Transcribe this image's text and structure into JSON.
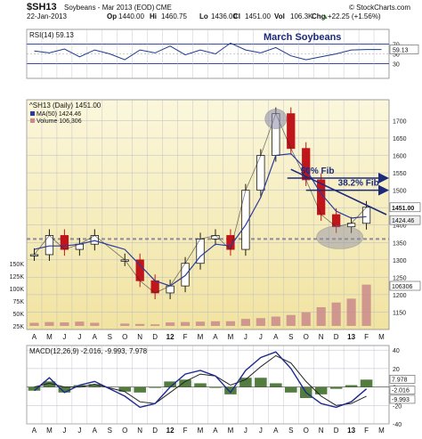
{
  "header": {
    "symbol": "$SH13",
    "name": "Soybeans - Mar 2013 (EOD)",
    "exchange": "CME",
    "copyright": "© StockCharts.com",
    "date": "22-Jan-2013",
    "quote": [
      {
        "label": "Op",
        "value": "1440.00"
      },
      {
        "label": "Hi",
        "value": "1460.75"
      },
      {
        "label": "Lo",
        "value": "1436.00"
      },
      {
        "label": "Cl",
        "value": "1451.00"
      },
      {
        "label": "Vol",
        "value": "106.3K"
      },
      {
        "label": "Chg",
        "value": "+22.25 (+1.56%)"
      }
    ],
    "up_arrow": "▲"
  },
  "colors": {
    "price_panel_bg": "#f9f3c9",
    "price_panel_bg_bottom": "#f2e6a4",
    "grid": "#b9b9c7",
    "rsi_line": "#1c3a8c",
    "ma_line": "#2b3c9c",
    "candle_up": "#1a1a1a",
    "candle_down": "#c0151a",
    "volume": "#c98a8a",
    "macd_line": "#1c2a8c",
    "signal_line": "#222222",
    "histogram": "#3f6f2a",
    "annotation": "#1c2a7c",
    "highlight": "#8a8aa8"
  },
  "chart_data": [
    {
      "type": "line",
      "panel": "RSI",
      "title": "RSI(14) 59.13",
      "annotation": "March Soybeans",
      "ylim": [
        0,
        100
      ],
      "y_ticks": [
        30,
        50,
        70
      ],
      "last_value": "59.13",
      "x": [
        "A",
        "M",
        "J",
        "J",
        "A",
        "S",
        "O",
        "N",
        "D",
        "12",
        "F",
        "M",
        "A",
        "M",
        "J",
        "J",
        "A",
        "S",
        "O",
        "N",
        "D",
        "13",
        "F",
        "M"
      ],
      "values": [
        56,
        52,
        60,
        44,
        58,
        50,
        38,
        58,
        52,
        66,
        48,
        58,
        50,
        72,
        58,
        52,
        63,
        46,
        38,
        44,
        50,
        58,
        59,
        59
      ]
    },
    {
      "type": "candlestick",
      "panel": "Price",
      "title": "^SH13 (Daily) 1451.00",
      "legend": [
        {
          "label": "MA(50) 1424.46"
        },
        {
          "label": "Volume 106,306"
        }
      ],
      "ylim": [
        1100,
        1760
      ],
      "y_ticks": [
        1150,
        1200,
        1250,
        1300,
        1350,
        1400,
        1450,
        1500,
        1550,
        1600,
        1650,
        1700
      ],
      "volume_ticks": [
        "150K",
        "125K",
        "100K",
        "75K",
        "50K",
        "25K"
      ],
      "volume_last": "106306",
      "price_labels": [
        "1451.00",
        "1424.46"
      ],
      "annotations": [
        {
          "text": "50% Fib",
          "level": 1535
        },
        {
          "text": "38.2% Fib",
          "level": 1500
        }
      ],
      "support_level": 1360,
      "x": [
        "A",
        "M",
        "J",
        "J",
        "A",
        "S",
        "O",
        "N",
        "D",
        "12",
        "F",
        "M",
        "A",
        "M",
        "J",
        "J",
        "A",
        "S",
        "O",
        "N",
        "D",
        "13",
        "F",
        "M"
      ],
      "close": [
        1315,
        1370,
        1330,
        1345,
        1370,
        null,
        1300,
        1240,
        1205,
        1225,
        1290,
        1360,
        1370,
        1330,
        1500,
        1600,
        1720,
        1620,
        1530,
        1430,
        1395,
        1405,
        1451,
        null
      ],
      "ma50": [
        1330,
        1340,
        1340,
        1345,
        1355,
        null,
        1330,
        1285,
        1240,
        1225,
        1255,
        1310,
        1345,
        1340,
        1400,
        1480,
        1600,
        1605,
        1560,
        1490,
        1440,
        1420,
        1424,
        null
      ],
      "volume": [
        8,
        10,
        9,
        11,
        8,
        null,
        6,
        5,
        4,
        9,
        10,
        11,
        12,
        12,
        18,
        20,
        24,
        28,
        35,
        48,
        60,
        70,
        106,
        null
      ]
    },
    {
      "type": "line",
      "panel": "MACD",
      "title": "MACD(12,26,9) -2.016, -9.993, 7.978",
      "ylim": [
        -40,
        45
      ],
      "y_ticks": [
        -40,
        -20,
        0,
        20,
        40
      ],
      "labels": [
        "7.978",
        "-2.016",
        "-9.993"
      ],
      "x": [
        "A",
        "M",
        "J",
        "J",
        "A",
        "S",
        "O",
        "N",
        "D",
        "12",
        "F",
        "M",
        "A",
        "M",
        "J",
        "J",
        "A",
        "S",
        "O",
        "N",
        "D",
        "13",
        "F",
        "M"
      ],
      "macd": [
        -4,
        10,
        -6,
        2,
        6,
        null,
        -10,
        -22,
        -18,
        0,
        14,
        18,
        12,
        -6,
        18,
        32,
        38,
        20,
        -6,
        -18,
        -22,
        -16,
        -2,
        null
      ],
      "signal": [
        0,
        4,
        0,
        0,
        3,
        null,
        -5,
        -16,
        -18,
        -6,
        6,
        14,
        12,
        2,
        8,
        22,
        34,
        26,
        6,
        -10,
        -20,
        -18,
        -10,
        null
      ],
      "histogram": [
        -4,
        6,
        -6,
        2,
        3,
        null,
        -5,
        -6,
        0,
        6,
        8,
        4,
        0,
        -8,
        10,
        10,
        4,
        -6,
        -12,
        -8,
        -2,
        2,
        8,
        null
      ]
    }
  ],
  "x_axis": {
    "labels": [
      "A",
      "M",
      "J",
      "J",
      "A",
      "S",
      "O",
      "N",
      "D",
      "12",
      "F",
      "M",
      "A",
      "M",
      "J",
      "J",
      "A",
      "S",
      "O",
      "N",
      "D",
      "13",
      "F",
      "M"
    ]
  }
}
